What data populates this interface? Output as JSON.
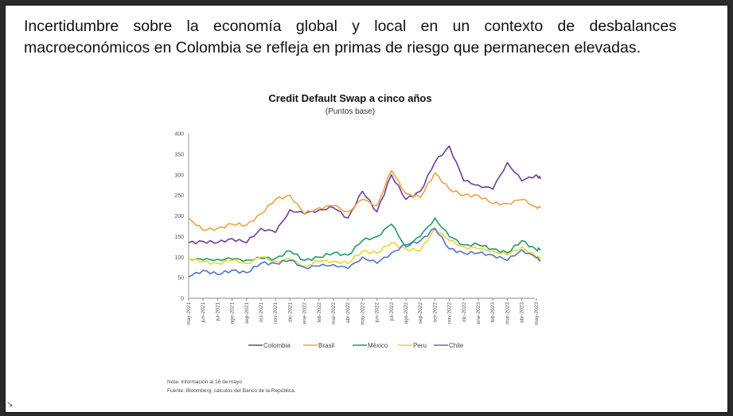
{
  "headline": "Incertidumbre sobre la economía global y local en un contexto de desbalances macroeconómicos en Colombia se refleja en primas de riesgo que permanecen elevadas.",
  "chart_data": {
    "type": "line",
    "title": "Credit Default Swap a cinco años",
    "subtitle": "(Puntos base)",
    "categories": [
      "may-2021",
      "jun-2021",
      "jul-2021",
      "ago-2021",
      "sep-2021",
      "oct-2021",
      "nov-2021",
      "dic-2021",
      "ene-2022",
      "feb-2022",
      "mar-2022",
      "abr-2022",
      "may-2022",
      "jun-2022",
      "jul-2022",
      "ago-2022",
      "sep-2022",
      "oct-2022",
      "nov-2022",
      "dic-2022",
      "ene-2023",
      "feb-2023",
      "mar-2023",
      "abr-2023",
      "may-2023"
    ],
    "x": [
      "may-2021",
      "jun-2021",
      "jul-2021",
      "ago-2021",
      "sep-2021",
      "oct-2021",
      "nov-2021",
      "dic-2021",
      "ene-2022",
      "feb-2022",
      "mar-2022",
      "abr-2022",
      "may-2022",
      "jun-2022",
      "jul-2022",
      "ago-2022",
      "sep-2022",
      "oct-2022",
      "nov-2022",
      "dic-2022",
      "ene-2023",
      "feb-2023",
      "mar-2023",
      "abr-2023",
      "may-2023",
      "18-may-2023"
    ],
    "ylim": [
      0,
      400
    ],
    "yticks": [
      0,
      50,
      100,
      150,
      200,
      250,
      300,
      350,
      400
    ],
    "grid": false,
    "legend": "bottom",
    "series": [
      {
        "name": "Colombia",
        "color": "#6a3fa0",
        "values": [
          135,
          138,
          135,
          145,
          135,
          170,
          160,
          215,
          205,
          215,
          220,
          195,
          260,
          210,
          300,
          240,
          260,
          330,
          370,
          285,
          275,
          265,
          330,
          285,
          300,
          290
        ]
      },
      {
        "name": "Brasil",
        "color": "#f0a040",
        "values": [
          195,
          165,
          170,
          180,
          178,
          205,
          240,
          250,
          205,
          220,
          225,
          210,
          240,
          225,
          310,
          255,
          245,
          305,
          265,
          250,
          250,
          230,
          230,
          240,
          222,
          220
        ]
      },
      {
        "name": "México",
        "color": "#1f9a6a",
        "values": [
          97,
          93,
          95,
          95,
          93,
          97,
          97,
          115,
          92,
          100,
          110,
          105,
          140,
          150,
          180,
          125,
          150,
          195,
          150,
          130,
          130,
          120,
          110,
          140,
          118,
          120
        ]
      },
      {
        "name": "Peru",
        "color": "#f2d230",
        "values": [
          97,
          88,
          85,
          92,
          85,
          100,
          90,
          95,
          78,
          90,
          90,
          85,
          115,
          110,
          135,
          120,
          115,
          170,
          140,
          125,
          120,
          115,
          105,
          125,
          100,
          98
        ]
      },
      {
        "name": "Chile",
        "color": "#4f74c8",
        "values": [
          52,
          68,
          58,
          68,
          62,
          85,
          85,
          92,
          75,
          78,
          82,
          72,
          100,
          85,
          110,
          130,
          140,
          170,
          120,
          110,
          110,
          105,
          92,
          118,
          98,
          92
        ]
      }
    ]
  },
  "notes": {
    "nota": "Nota: Información al 18 de mayo",
    "fuente": "Fuente: Bloomberg, cálculos del Banco de la República."
  }
}
